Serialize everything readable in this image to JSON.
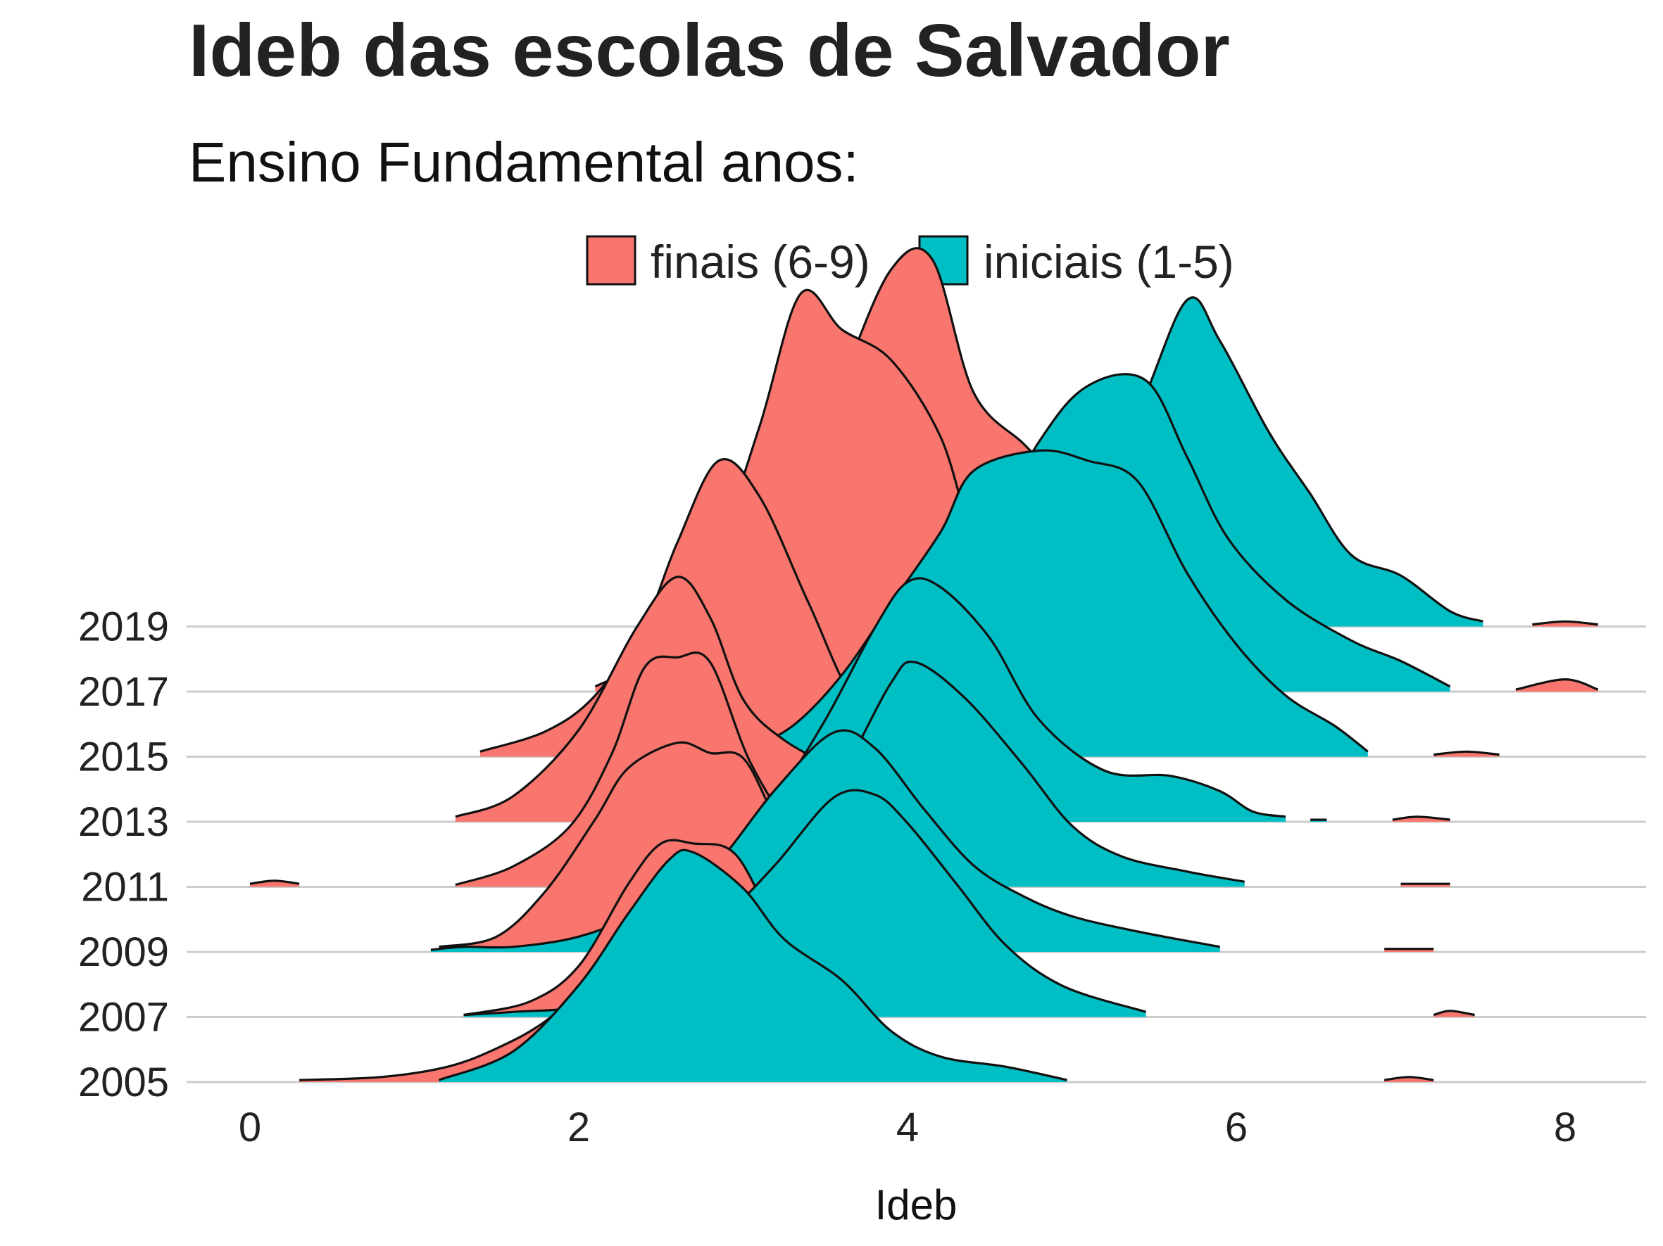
{
  "chart_data": {
    "type": "ridgeline",
    "title": "Ideb das escolas de Salvador",
    "subtitle": "Ensino Fundamental anos:",
    "xlabel": "Ideb",
    "ylabel": "",
    "xlim": [
      -0.5,
      8.5
    ],
    "x_ticks": [
      "0",
      "2",
      "4",
      "6",
      "8"
    ],
    "categories": [
      "2005",
      "2007",
      "2009",
      "2011",
      "2013",
      "2015",
      "2017",
      "2019"
    ],
    "legend": {
      "position": "top",
      "entries": [
        {
          "label": "finais (6-9)",
          "color": "#F8766D"
        },
        {
          "label": "iniciais (1-5)",
          "color": "#00BFC4"
        }
      ]
    },
    "grid": true,
    "series": [
      {
        "name": "finais (6-9)",
        "color": "#F8766D",
        "ridges": [
          {
            "year": "2005",
            "main": [
              [
                0.3,
                0.02
              ],
              [
                0.8,
                0.05
              ],
              [
                1.2,
                0.15
              ],
              [
                1.5,
                0.33
              ],
              [
                1.8,
                0.6
              ],
              [
                2.1,
                1.05
              ],
              [
                2.4,
                1.55
              ],
              [
                2.65,
                1.8
              ],
              [
                2.9,
                1.5
              ],
              [
                3.2,
                0.5
              ],
              [
                3.4,
                0.05
              ]
            ],
            "extra": [
              [
                [
                  6.9,
                  0.02
                ],
                [
                  7.05,
                  0.05
                ],
                [
                  7.2,
                  0.02
                ]
              ]
            ]
          },
          {
            "year": "2007",
            "main": [
              [
                1.3,
                0.02
              ],
              [
                1.7,
                0.15
              ],
              [
                2.0,
                0.5
              ],
              [
                2.3,
                1.3
              ],
              [
                2.5,
                1.7
              ],
              [
                2.7,
                1.7
              ],
              [
                2.95,
                1.6
              ],
              [
                3.2,
                0.9
              ],
              [
                3.5,
                0.3
              ],
              [
                3.8,
                0.05
              ]
            ],
            "extra": [
              [
                [
                  7.2,
                  0.02
                ],
                [
                  7.3,
                  0.06
                ],
                [
                  7.45,
                  0.02
                ]
              ]
            ]
          },
          {
            "year": "2009",
            "main": [
              [
                1.15,
                0.05
              ],
              [
                1.5,
                0.15
              ],
              [
                1.8,
                0.6
              ],
              [
                2.1,
                1.3
              ],
              [
                2.3,
                1.8
              ],
              [
                2.6,
                2.05
              ],
              [
                2.8,
                1.95
              ],
              [
                3.0,
                1.9
              ],
              [
                3.2,
                1.3
              ],
              [
                3.5,
                0.45
              ],
              [
                3.8,
                0.1
              ],
              [
                4.0,
                0.02
              ]
            ],
            "extra": [
              [
                [
                  6.9,
                  0.03
                ],
                [
                  7.2,
                  0.03
                ]
              ]
            ]
          },
          {
            "year": "2011",
            "main": [
              [
                1.25,
                0.02
              ],
              [
                1.6,
                0.2
              ],
              [
                1.95,
                0.6
              ],
              [
                2.2,
                1.3
              ],
              [
                2.4,
                2.15
              ],
              [
                2.6,
                2.25
              ],
              [
                2.8,
                2.2
              ],
              [
                3.05,
                1.2
              ],
              [
                3.35,
                0.5
              ],
              [
                3.8,
                0.05
              ]
            ],
            "extra": [
              [
                [
                  0.0,
                  0.03
                ],
                [
                  0.15,
                  0.06
                ],
                [
                  0.3,
                  0.03
                ]
              ],
              [
                [
                  7.0,
                  0.03
                ],
                [
                  7.3,
                  0.03
                ]
              ]
            ]
          },
          {
            "year": "2013",
            "main": [
              [
                1.25,
                0.05
              ],
              [
                1.6,
                0.25
              ],
              [
                2.0,
                0.9
              ],
              [
                2.35,
                1.9
              ],
              [
                2.6,
                2.4
              ],
              [
                2.8,
                2.0
              ],
              [
                3.0,
                1.2
              ],
              [
                3.25,
                0.8
              ],
              [
                3.6,
                0.5
              ],
              [
                3.9,
                0.3
              ],
              [
                4.2,
                0.1
              ]
            ],
            "extra": [
              [
                [
                  6.95,
                  0.02
                ],
                [
                  7.1,
                  0.05
                ],
                [
                  7.3,
                  0.02
                ]
              ]
            ]
          },
          {
            "year": "2015",
            "main": [
              [
                1.4,
                0.05
              ],
              [
                1.8,
                0.25
              ],
              [
                2.1,
                0.6
              ],
              [
                2.4,
                1.3
              ],
              [
                2.6,
                2.1
              ],
              [
                2.85,
                2.9
              ],
              [
                3.1,
                2.55
              ],
              [
                3.4,
                1.5
              ],
              [
                3.7,
                0.5
              ],
              [
                4.1,
                0.1
              ],
              [
                4.5,
                0.02
              ]
            ],
            "extra": [
              [
                [
                  7.2,
                  0.02
                ],
                [
                  7.4,
                  0.05
                ],
                [
                  7.6,
                  0.02
                ]
              ]
            ]
          },
          {
            "year": "2017",
            "main": [
              [
                2.1,
                0.05
              ],
              [
                2.5,
                0.4
              ],
              [
                2.8,
                1.2
              ],
              [
                3.1,
                2.6
              ],
              [
                3.35,
                3.9
              ],
              [
                3.6,
                3.55
              ],
              [
                3.9,
                3.25
              ],
              [
                4.2,
                2.5
              ],
              [
                4.4,
                1.5
              ],
              [
                4.6,
                1.1
              ],
              [
                4.9,
                0.8
              ],
              [
                5.2,
                0.4
              ],
              [
                5.5,
                0.1
              ]
            ],
            "extra": [
              [
                [
                  7.7,
                  0.02
                ],
                [
                  8.0,
                  0.12
                ],
                [
                  8.2,
                  0.02
                ]
              ]
            ]
          },
          {
            "year": "2019",
            "main": [
              [
                2.6,
                0.05
              ],
              [
                3.0,
                0.4
              ],
              [
                3.3,
                1.2
              ],
              [
                3.6,
                2.4
              ],
              [
                3.9,
                3.5
              ],
              [
                4.15,
                3.6
              ],
              [
                4.4,
                2.3
              ],
              [
                4.7,
                1.8
              ],
              [
                4.9,
                1.5
              ],
              [
                5.2,
                1.2
              ],
              [
                5.5,
                0.6
              ],
              [
                5.8,
                0.2
              ],
              [
                6.2,
                0.05
              ]
            ],
            "extra": [
              [
                [
                  7.8,
                  0.02
                ],
                [
                  8.0,
                  0.05
                ],
                [
                  8.2,
                  0.02
                ]
              ]
            ]
          }
        ]
      },
      {
        "name": "iniciais (1-5)",
        "color": "#00BFC4",
        "ridges": [
          {
            "year": "2005",
            "main": [
              [
                1.15,
                0.02
              ],
              [
                1.6,
                0.3
              ],
              [
                2.0,
                0.95
              ],
              [
                2.3,
                1.65
              ],
              [
                2.55,
                2.18
              ],
              [
                2.7,
                2.25
              ],
              [
                3.0,
                1.9
              ],
              [
                3.25,
                1.4
              ],
              [
                3.6,
                1.0
              ],
              [
                3.9,
                0.5
              ],
              [
                4.2,
                0.25
              ],
              [
                4.6,
                0.15
              ],
              [
                4.97,
                0.02
              ]
            ],
            "extra": []
          },
          {
            "year": "2007",
            "main": [
              [
                1.3,
                0.02
              ],
              [
                1.6,
                0.05
              ],
              [
                2.0,
                0.1
              ],
              [
                2.3,
                0.3
              ],
              [
                2.6,
                0.6
              ],
              [
                2.9,
                1.0
              ],
              [
                3.2,
                1.5
              ],
              [
                3.55,
                2.15
              ],
              [
                3.8,
                2.18
              ],
              [
                4.0,
                1.9
              ],
              [
                4.3,
                1.3
              ],
              [
                4.6,
                0.7
              ],
              [
                4.95,
                0.3
              ],
              [
                5.45,
                0.05
              ]
            ],
            "extra": []
          },
          {
            "year": "2009",
            "main": [
              [
                1.1,
                0.02
              ],
              [
                1.3,
                0.05
              ],
              [
                1.6,
                0.05
              ],
              [
                2.0,
                0.15
              ],
              [
                2.4,
                0.4
              ],
              [
                2.8,
                0.8
              ],
              [
                3.2,
                1.6
              ],
              [
                3.55,
                2.15
              ],
              [
                3.8,
                2.0
              ],
              [
                4.1,
                1.4
              ],
              [
                4.4,
                0.85
              ],
              [
                4.7,
                0.55
              ],
              [
                5.0,
                0.35
              ],
              [
                5.4,
                0.2
              ],
              [
                5.9,
                0.05
              ]
            ],
            "extra": []
          },
          {
            "year": "2011",
            "main": [
              [
                3.0,
                0.05
              ],
              [
                3.3,
                0.4
              ],
              [
                3.6,
                1.1
              ],
              [
                3.9,
                2.0
              ],
              [
                4.05,
                2.2
              ],
              [
                4.35,
                1.85
              ],
              [
                4.7,
                1.2
              ],
              [
                5.0,
                0.6
              ],
              [
                5.3,
                0.3
              ],
              [
                5.7,
                0.15
              ],
              [
                6.05,
                0.05
              ]
            ],
            "extra": []
          },
          {
            "year": "2013",
            "main": [
              [
                3.0,
                0.05
              ],
              [
                3.2,
                0.25
              ],
              [
                3.5,
                1.0
              ],
              [
                3.8,
                1.9
              ],
              [
                4.0,
                2.35
              ],
              [
                4.2,
                2.3
              ],
              [
                4.5,
                1.8
              ],
              [
                4.8,
                1.0
              ],
              [
                5.2,
                0.5
              ],
              [
                5.6,
                0.45
              ],
              [
                5.9,
                0.3
              ],
              [
                6.1,
                0.1
              ],
              [
                6.3,
                0.05
              ]
            ],
            "extra": [
              [
                [
                  6.45,
                  0.02
                ],
                [
                  6.55,
                  0.02
                ]
              ]
            ]
          },
          {
            "year": "2015",
            "main": [
              [
                3.0,
                0.05
              ],
              [
                3.3,
                0.3
              ],
              [
                3.6,
                0.8
              ],
              [
                3.9,
                1.5
              ],
              [
                4.2,
                2.2
              ],
              [
                4.4,
                2.8
              ],
              [
                4.8,
                3.0
              ],
              [
                5.1,
                2.9
              ],
              [
                5.4,
                2.7
              ],
              [
                5.7,
                1.8
              ],
              [
                6.0,
                1.1
              ],
              [
                6.3,
                0.6
              ],
              [
                6.6,
                0.3
              ],
              [
                6.8,
                0.05
              ]
            ],
            "extra": []
          },
          {
            "year": "2017",
            "main": [
              [
                3.5,
                0.05
              ],
              [
                4.0,
                0.5
              ],
              [
                4.4,
                1.3
              ],
              [
                4.8,
                2.45
              ],
              [
                5.1,
                3.0
              ],
              [
                5.45,
                3.05
              ],
              [
                5.7,
                2.3
              ],
              [
                5.95,
                1.5
              ],
              [
                6.3,
                0.9
              ],
              [
                6.7,
                0.5
              ],
              [
                7.0,
                0.3
              ],
              [
                7.3,
                0.05
              ]
            ],
            "extra": []
          },
          {
            "year": "2019",
            "main": [
              [
                4.6,
                0.05
              ],
              [
                5.0,
                0.9
              ],
              [
                5.4,
                2.1
              ],
              [
                5.7,
                3.2
              ],
              [
                5.9,
                2.8
              ],
              [
                6.2,
                1.9
              ],
              [
                6.45,
                1.3
              ],
              [
                6.7,
                0.7
              ],
              [
                7.0,
                0.5
              ],
              [
                7.3,
                0.15
              ],
              [
                7.5,
                0.05
              ]
            ],
            "extra": []
          }
        ]
      }
    ]
  }
}
